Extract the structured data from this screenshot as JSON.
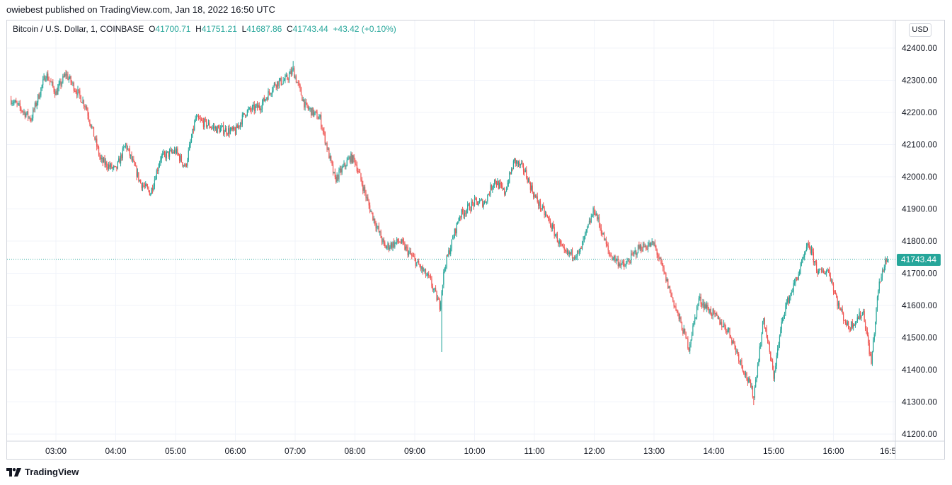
{
  "header": {
    "published": "owiebest published on TradingView.com, Jan 18, 2022 16:50 UTC"
  },
  "legend": {
    "symbol": "Bitcoin / U.S. Dollar, 1, COINBASE",
    "o_label": "O",
    "o_value": "41700.71",
    "h_label": "H",
    "h_value": "41751.21",
    "l_label": "L",
    "l_value": "41687.86",
    "c_label": "C",
    "c_value": "41743.44",
    "change": "+43.42 (+0.10%)"
  },
  "currency": "USD",
  "last_price": "41743.44",
  "footer": {
    "brand": "TradingView"
  },
  "colors": {
    "up": "#26a69a",
    "down": "#ef5350",
    "grid": "#f0f3fa",
    "axis_text": "#131722"
  },
  "chart_data": {
    "type": "candlestick",
    "title": "Bitcoin / U.S. Dollar, 1, COINBASE",
    "currency": "USD",
    "ylim": [
      41180,
      42490
    ],
    "y_ticks": [
      "41200.00",
      "41300.00",
      "41400.00",
      "41500.00",
      "41600.00",
      "41700.00",
      "41800.00",
      "41900.00",
      "42000.00",
      "42100.00",
      "42200.00",
      "42300.00",
      "42400.00"
    ],
    "x_ticks": [
      "03:00",
      "04:00",
      "05:00",
      "06:00",
      "07:00",
      "08:00",
      "09:00",
      "10:00",
      "11:00",
      "12:00",
      "13:00",
      "14:00",
      "15:00",
      "16:00",
      "16:5"
    ],
    "x_range": [
      "02:15",
      "16:55"
    ],
    "last_price": 41743.44,
    "grid": true,
    "key_points": [
      {
        "time": "02:15",
        "price": 42240
      },
      {
        "time": "02:35",
        "price": 42180
      },
      {
        "time": "02:50",
        "price": 42320
      },
      {
        "time": "03:00",
        "price": 42260
      },
      {
        "time": "03:10",
        "price": 42320
      },
      {
        "time": "03:30",
        "price": 42220
      },
      {
        "time": "03:45",
        "price": 42050
      },
      {
        "time": "04:00",
        "price": 42020
      },
      {
        "time": "04:10",
        "price": 42100
      },
      {
        "time": "04:25",
        "price": 41980
      },
      {
        "time": "04:35",
        "price": 41950
      },
      {
        "time": "04:45",
        "price": 42060
      },
      {
        "time": "05:00",
        "price": 42080
      },
      {
        "time": "05:10",
        "price": 42030
      },
      {
        "time": "05:20",
        "price": 42180
      },
      {
        "time": "05:40",
        "price": 42150
      },
      {
        "time": "06:00",
        "price": 42140
      },
      {
        "time": "06:10",
        "price": 42200
      },
      {
        "time": "06:25",
        "price": 42220
      },
      {
        "time": "06:40",
        "price": 42290
      },
      {
        "time": "06:50",
        "price": 42300
      },
      {
        "time": "06:58",
        "price": 42330
      },
      {
        "time": "07:10",
        "price": 42220
      },
      {
        "time": "07:25",
        "price": 42180
      },
      {
        "time": "07:40",
        "price": 41990
      },
      {
        "time": "07:55",
        "price": 42060
      },
      {
        "time": "08:00",
        "price": 42050
      },
      {
        "time": "08:15",
        "price": 41900
      },
      {
        "time": "08:30",
        "price": 41780
      },
      {
        "time": "08:45",
        "price": 41800
      },
      {
        "time": "09:00",
        "price": 41740
      },
      {
        "time": "09:15",
        "price": 41680
      },
      {
        "time": "09:25",
        "price": 41600
      },
      {
        "time": "09:30",
        "price": 41720
      },
      {
        "time": "09:45",
        "price": 41880
      },
      {
        "time": "10:00",
        "price": 41920
      },
      {
        "time": "10:10",
        "price": 41920
      },
      {
        "time": "10:20",
        "price": 41990
      },
      {
        "time": "10:30",
        "price": 41950
      },
      {
        "time": "10:40",
        "price": 42050
      },
      {
        "time": "10:50",
        "price": 42020
      },
      {
        "time": "11:00",
        "price": 41940
      },
      {
        "time": "11:15",
        "price": 41860
      },
      {
        "time": "11:30",
        "price": 41760
      },
      {
        "time": "11:45",
        "price": 41760
      },
      {
        "time": "12:00",
        "price": 41900
      },
      {
        "time": "12:15",
        "price": 41760
      },
      {
        "time": "12:30",
        "price": 41720
      },
      {
        "time": "12:45",
        "price": 41780
      },
      {
        "time": "13:00",
        "price": 41790
      },
      {
        "time": "13:10",
        "price": 41700
      },
      {
        "time": "13:25",
        "price": 41560
      },
      {
        "time": "13:35",
        "price": 41470
      },
      {
        "time": "13:45",
        "price": 41620
      },
      {
        "time": "14:00",
        "price": 41570
      },
      {
        "time": "14:15",
        "price": 41520
      },
      {
        "time": "14:30",
        "price": 41400
      },
      {
        "time": "14:40",
        "price": 41320
      },
      {
        "time": "14:50",
        "price": 41560
      },
      {
        "time": "15:00",
        "price": 41380
      },
      {
        "time": "15:10",
        "price": 41580
      },
      {
        "time": "15:25",
        "price": 41700
      },
      {
        "time": "15:35",
        "price": 41790
      },
      {
        "time": "15:45",
        "price": 41700
      },
      {
        "time": "15:55",
        "price": 41710
      },
      {
        "time": "16:05",
        "price": 41600
      },
      {
        "time": "16:15",
        "price": 41530
      },
      {
        "time": "16:30",
        "price": 41580
      },
      {
        "time": "16:38",
        "price": 41420
      },
      {
        "time": "16:45",
        "price": 41650
      },
      {
        "time": "16:52",
        "price": 41740
      },
      {
        "time": "16:55",
        "price": 41743.44
      }
    ],
    "extremes": {
      "high": {
        "time": "06:58",
        "price": 42360
      },
      "low": {
        "time": "14:40",
        "price": 41290
      },
      "spike_low": {
        "time": "09:27",
        "price": 41455
      }
    }
  }
}
